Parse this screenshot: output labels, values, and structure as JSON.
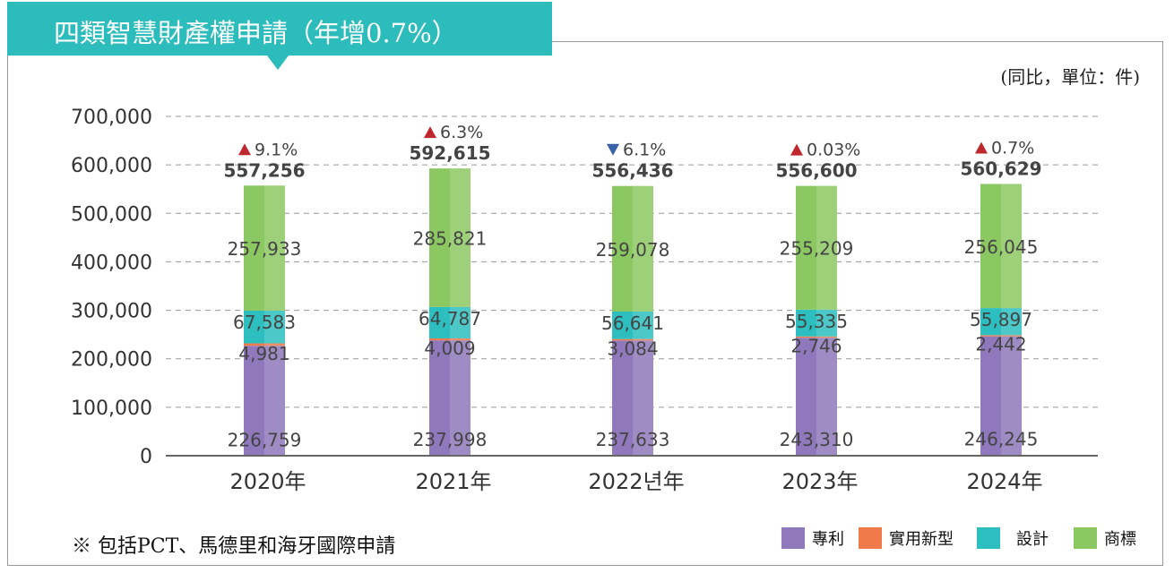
{
  "title": "四類智慧財產權申請（年增0.7%）",
  "unit_note": "(同比，單位：件)",
  "footnote": "※ 包括PCT、馬德里和海牙國際申請",
  "colors": {
    "title_bg": "#2cbcbc",
    "patent": "#8f78bb",
    "utility": "#f07a4a",
    "design": "#2dbfbf",
    "trademark": "#8cc862",
    "up": "#c0272d",
    "down": "#3a62a8"
  },
  "chart_data": {
    "type": "bar",
    "stacked": true,
    "categories": [
      "2020年",
      "2021年",
      "2022년年",
      "2023年",
      "2024年"
    ],
    "series": [
      {
        "name": "專利",
        "values": [
          226759,
          237998,
          237633,
          243310,
          246245
        ]
      },
      {
        "name": "實用新型",
        "values": [
          4981,
          4009,
          3084,
          2746,
          2442
        ]
      },
      {
        "name": "設計",
        "values": [
          67583,
          64787,
          56641,
          55335,
          55897
        ]
      },
      {
        "name": "商標",
        "values": [
          257933,
          285821,
          259078,
          255209,
          256045
        ]
      }
    ],
    "totals": [
      557256,
      592615,
      556436,
      556600,
      560629
    ],
    "total_labels": [
      "557,256",
      "592,615",
      "556,436",
      "556,600",
      "560,629"
    ],
    "value_labels": {
      "專利": [
        "226,759",
        "237,998",
        "237,633",
        "243,310",
        "246,245"
      ],
      "實用新型": [
        "4,981",
        "4,009",
        "3,084",
        "2,746",
        "2,442"
      ],
      "設計": [
        "67,583",
        "64,787",
        "56,641",
        "55,335",
        "55,897"
      ],
      "商標": [
        "257,933",
        "285,821",
        "259,078",
        "255,209",
        "256,045"
      ]
    },
    "growth": [
      {
        "direction": "up",
        "label": "9.1%"
      },
      {
        "direction": "up",
        "label": "6.3%"
      },
      {
        "direction": "down",
        "label": "6.1%"
      },
      {
        "direction": "up",
        "label": "0.03%"
      },
      {
        "direction": "up",
        "label": "0.7%"
      }
    ],
    "yticks": [
      "0",
      "100,000",
      "200,000",
      "300,000",
      "400,000",
      "500,000",
      "600,000",
      "700,000"
    ],
    "ylim": [
      0,
      700000
    ],
    "grid": true,
    "legend_position": "bottom-right"
  },
  "legend": [
    {
      "label": "專利",
      "color": "#8f78bb"
    },
    {
      "label": "實用新型",
      "color": "#f07a4a"
    },
    {
      "label": "設計",
      "color": "#2dbfbf"
    },
    {
      "label": "商標",
      "color": "#8cc862"
    }
  ]
}
